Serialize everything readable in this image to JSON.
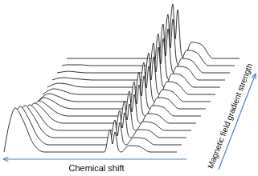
{
  "chart_data": {
    "type": "line",
    "x_label": "Chemical shift",
    "y_label": "Magnetic field gradient strength",
    "color": "#000000",
    "marker": "none",
    "grid": false,
    "tick_labels": false,
    "xlim": [
      0,
      321
    ],
    "ylim": [
      0,
      220
    ],
    "series": [
      {
        "x": [
          5,
          11,
          19,
          29,
          41,
          55,
          130,
          137,
          140,
          143,
          147,
          151,
          160,
          173,
          187,
          220
        ],
        "values": [
          30,
          63,
          85,
          69,
          41,
          30,
          30,
          58,
          40,
          55,
          34,
          30,
          38,
          37,
          30,
          30
        ]
      },
      {
        "x": [
          11,
          17,
          25,
          35,
          47,
          61,
          136,
          143,
          146,
          149,
          153,
          157,
          166,
          179,
          193,
          226
        ],
        "values": [
          39,
          68,
          87,
          73,
          49,
          39,
          39,
          70,
          50,
          67,
          44,
          39,
          48,
          47,
          39,
          39
        ]
      },
      {
        "x": [
          17,
          23,
          31,
          41,
          53,
          67,
          142,
          149,
          152,
          155,
          159,
          163,
          172,
          185,
          199,
          232
        ],
        "values": [
          48,
          72,
          88,
          76,
          56,
          48,
          48,
          82,
          60,
          79,
          53,
          48,
          58,
          57,
          48,
          48
        ]
      },
      {
        "x": [
          23,
          29,
          37,
          47,
          59,
          73,
          148,
          155,
          158,
          161,
          165,
          169,
          178,
          191,
          205,
          238
        ],
        "values": [
          57,
          76,
          89,
          79,
          63,
          57,
          57,
          94,
          70,
          90,
          63,
          57,
          68,
          66,
          57,
          57
        ]
      },
      {
        "x": [
          29,
          35,
          43,
          53,
          65,
          79,
          154,
          161,
          164,
          167,
          171,
          175,
          184,
          197,
          211,
          244
        ],
        "values": [
          66,
          81,
          91,
          84,
          71,
          66,
          66,
          106,
          80,
          102,
          72,
          66,
          78,
          76,
          66,
          66
        ]
      },
      {
        "x": [
          35,
          41,
          49,
          59,
          71,
          85,
          160,
          167,
          170,
          173,
          177,
          181,
          190,
          203,
          217,
          250
        ],
        "values": [
          75,
          86,
          94,
          88,
          79,
          75,
          75,
          118,
          90,
          114,
          81,
          75,
          88,
          86,
          75,
          75
        ]
      },
      {
        "x": [
          41,
          47,
          55,
          65,
          77,
          91,
          166,
          173,
          176,
          179,
          183,
          187,
          196,
          209,
          223,
          256
        ],
        "values": [
          84,
          92,
          98,
          94,
          87,
          84,
          84,
          130,
          100,
          125,
          91,
          84,
          98,
          96,
          84,
          84
        ]
      },
      {
        "x": [
          47,
          53,
          61,
          71,
          83,
          97,
          172,
          179,
          182,
          185,
          189,
          193,
          202,
          215,
          229,
          262
        ],
        "values": [
          93,
          99,
          103,
          100,
          95,
          93,
          93,
          142,
          110,
          137,
          100,
          93,
          108,
          105,
          93,
          93
        ]
      },
      {
        "x": [
          53,
          59,
          67,
          77,
          89,
          103,
          178,
          185,
          188,
          191,
          195,
          199,
          208,
          221,
          235,
          268
        ],
        "values": [
          102,
          106,
          109,
          107,
          103,
          102,
          102,
          154,
          120,
          149,
          110,
          102,
          118,
          115,
          102,
          102
        ]
      },
      {
        "x": [
          59,
          65,
          73,
          83,
          95,
          109,
          184,
          191,
          194,
          197,
          201,
          205,
          214,
          227,
          241,
          274
        ],
        "values": [
          111,
          114,
          116,
          115,
          112,
          111,
          111,
          166,
          130,
          161,
          119,
          111,
          128,
          125,
          111,
          111
        ]
      },
      {
        "x": [
          65,
          71,
          79,
          89,
          101,
          115,
          190,
          197,
          200,
          203,
          207,
          211,
          220,
          233,
          247,
          280
        ],
        "values": [
          120,
          122,
          123,
          122,
          121,
          120,
          120,
          178,
          140,
          172,
          129,
          120,
          137,
          135,
          120,
          120
        ]
      },
      {
        "x": [
          71,
          77,
          85,
          95,
          107,
          121,
          196,
          203,
          206,
          209,
          213,
          217,
          226,
          239,
          253,
          286
        ],
        "values": [
          129,
          130,
          131,
          130,
          129,
          129,
          129,
          190,
          150,
          184,
          138,
          129,
          147,
          144,
          129,
          129
        ]
      },
      {
        "x": [
          77,
          83,
          91,
          101,
          113,
          127,
          202,
          209,
          212,
          215,
          219,
          223,
          232,
          245,
          259,
          292
        ],
        "values": [
          138,
          139,
          139,
          139,
          138,
          138,
          138,
          202,
          160,
          196,
          148,
          138,
          157,
          154,
          138,
          138
        ]
      },
      {
        "x": [
          83,
          89,
          97,
          107,
          119,
          133,
          208,
          215,
          218,
          221,
          225,
          229,
          238,
          251,
          265,
          298
        ],
        "values": [
          147,
          147,
          147,
          147,
          147,
          147,
          147,
          215,
          171,
          208,
          157,
          147,
          167,
          164,
          147,
          147
        ]
      }
    ]
  }
}
